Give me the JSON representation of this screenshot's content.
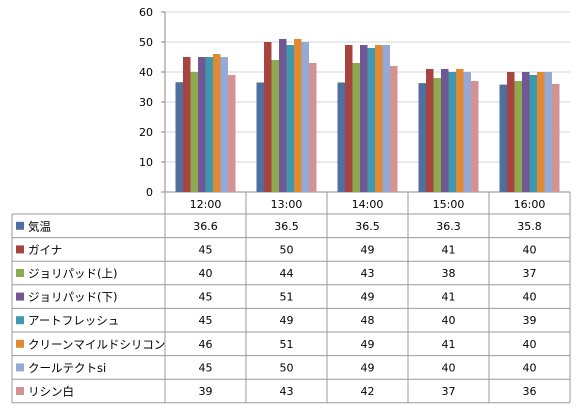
{
  "chart_data": {
    "type": "bar",
    "title": "",
    "xlabel": "",
    "ylabel": "",
    "ylim": [
      0,
      60
    ],
    "yticks": [
      0,
      10,
      20,
      30,
      40,
      50,
      60
    ],
    "grid": true,
    "legend": "data-table",
    "categories": [
      "12:00",
      "13:00",
      "14:00",
      "15:00",
      "16:00"
    ],
    "series": [
      {
        "name": "気温",
        "color": "#4F6FA0",
        "values": [
          36.6,
          36.5,
          36.5,
          36.3,
          35.8
        ]
      },
      {
        "name": "ガイナ",
        "color": "#A84440",
        "values": [
          45,
          50,
          49,
          41,
          40
        ]
      },
      {
        "name": "ジョリパッド(上)",
        "color": "#8DAA4E",
        "values": [
          40,
          44,
          43,
          38,
          37
        ]
      },
      {
        "name": "ジョリパッド(下)",
        "color": "#715793",
        "values": [
          45,
          51,
          49,
          41,
          40
        ]
      },
      {
        "name": "アートフレッシュ",
        "color": "#3F99AE",
        "values": [
          45,
          49,
          48,
          40,
          39
        ]
      },
      {
        "name": "クリーンマイルドシリコン",
        "color": "#E08A34",
        "values": [
          46,
          51,
          49,
          41,
          40
        ]
      },
      {
        "name": "クールテクトsi",
        "color": "#94A9D6",
        "values": [
          45,
          50,
          49,
          40,
          40
        ]
      },
      {
        "name": "リシン白",
        "color": "#D49393",
        "values": [
          39,
          43,
          42,
          37,
          36
        ]
      }
    ]
  }
}
